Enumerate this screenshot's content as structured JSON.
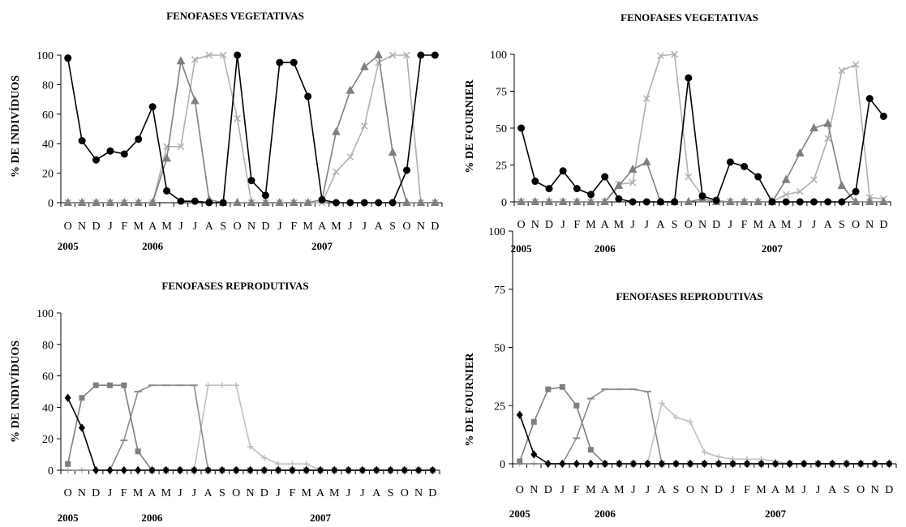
{
  "chart_data": [
    {
      "type": "line",
      "title": "FENOFASES VEGETATIVAS",
      "ylabel": "% DE INDIVÍDUOS",
      "ylim": [
        0,
        100
      ],
      "yticks": [
        0,
        20,
        40,
        60,
        80,
        100
      ],
      "categories": [
        "O",
        "N",
        "D",
        "J",
        "F",
        "M",
        "A",
        "M",
        "J",
        "J",
        "A",
        "S",
        "O",
        "N",
        "D",
        "J",
        "F",
        "M",
        "A",
        "M",
        "J",
        "J",
        "A",
        "S",
        "O",
        "N",
        "D"
      ],
      "year_labels": [
        {
          "label": "2005",
          "index": 0.5
        },
        {
          "label": "2006",
          "index": 6.5
        },
        {
          "label": "2007",
          "index": 18.5
        }
      ],
      "series": [
        {
          "marker": "circle",
          "color": "#000000",
          "values": [
            98,
            42,
            29,
            35,
            33,
            43,
            65,
            8,
            1,
            1,
            0,
            0,
            100,
            15,
            5,
            95,
            95,
            72,
            2,
            0,
            0,
            0,
            0,
            0,
            22,
            100,
            100
          ]
        },
        {
          "marker": "triangle",
          "color": "#7f7f7f",
          "values": [
            0,
            0,
            0,
            0,
            0,
            0,
            0,
            30,
            96,
            69,
            2,
            0,
            0,
            0,
            0,
            0,
            0,
            0,
            2,
            48,
            76,
            92,
            100,
            34,
            0,
            0,
            0
          ]
        },
        {
          "marker": "x",
          "color": "#b0b0b0",
          "values": [
            0,
            0,
            0,
            0,
            0,
            0,
            0,
            38,
            38,
            97,
            100,
            100,
            57,
            0,
            0,
            0,
            0,
            0,
            0,
            21,
            31,
            52,
            95,
            100,
            100,
            0,
            0
          ]
        }
      ]
    },
    {
      "type": "line",
      "title": "FENOFASES VEGETATIVAS",
      "ylabel": "% DE FOURNIER",
      "ylim": [
        0,
        100
      ],
      "yticks": [
        0,
        25,
        50,
        75,
        100
      ],
      "categories": [
        "O",
        "N",
        "D",
        "J",
        "F",
        "M",
        "A",
        "M",
        "J",
        "J",
        "A",
        "S",
        "O",
        "N",
        "D",
        "J",
        "F",
        "M",
        "A",
        "M",
        "J",
        "J",
        "A",
        "S",
        "O",
        "N",
        "D"
      ],
      "year_labels": [
        {
          "label": "2005",
          "index": 0.5
        },
        {
          "label": "2006",
          "index": 6.5
        },
        {
          "label": "2007",
          "index": 18.5
        }
      ],
      "series": [
        {
          "marker": "circle",
          "color": "#000000",
          "values": [
            50,
            14,
            9,
            21,
            9,
            5,
            17,
            2,
            0,
            0,
            0,
            0,
            84,
            4,
            1,
            27,
            24,
            17,
            0,
            0,
            0,
            0,
            0,
            0,
            7,
            70,
            58
          ]
        },
        {
          "marker": "triangle",
          "color": "#7f7f7f",
          "values": [
            0,
            0,
            0,
            0,
            0,
            0,
            0,
            11,
            22,
            27,
            0,
            0,
            0,
            2,
            0,
            0,
            0,
            0,
            0,
            15,
            33,
            50,
            53,
            11,
            0,
            0,
            0
          ]
        },
        {
          "marker": "x",
          "color": "#b0b0b0",
          "values": [
            0,
            0,
            0,
            0,
            0,
            0,
            0,
            12,
            13,
            70,
            99,
            100,
            17,
            4,
            1,
            0,
            0,
            0,
            0,
            5,
            7,
            15,
            43,
            89,
            93,
            3,
            2
          ]
        }
      ]
    },
    {
      "type": "line",
      "title": "FENOFASES REPRODUTIVAS",
      "ylabel": "% DE INDIVÍDUOS",
      "ylim": [
        0,
        100
      ],
      "yticks": [
        0,
        20,
        40,
        60,
        80,
        100
      ],
      "categories": [
        "O",
        "N",
        "D",
        "J",
        "F",
        "M",
        "A",
        "M",
        "J",
        "J",
        "A",
        "S",
        "O",
        "N",
        "D",
        "J",
        "F",
        "M",
        "A",
        "M",
        "J",
        "J",
        "A",
        "S",
        "O",
        "N",
        "D"
      ],
      "year_labels": [
        {
          "label": "2005",
          "index": 0.5
        },
        {
          "label": "2006",
          "index": 6.5
        },
        {
          "label": "2007",
          "index": 18.5
        }
      ],
      "series": [
        {
          "marker": "diamond",
          "color": "#000000",
          "values": [
            46,
            27,
            0,
            0,
            0,
            0,
            0,
            0,
            0,
            0,
            0,
            0,
            0,
            0,
            0,
            0,
            0,
            0,
            0,
            0,
            0,
            0,
            0,
            0,
            0,
            0,
            0
          ]
        },
        {
          "marker": "square",
          "color": "#7f7f7f",
          "values": [
            4,
            46,
            54,
            54,
            54,
            12,
            0,
            0,
            0,
            0,
            0,
            0,
            0,
            0,
            0,
            0,
            0,
            0,
            0,
            0,
            0,
            0,
            0,
            0,
            0,
            0,
            0
          ]
        },
        {
          "marker": "dash",
          "color": "#8c8c8c",
          "values": [
            0,
            0,
            0,
            0,
            19,
            50,
            54,
            54,
            54,
            54,
            0,
            0,
            0,
            0,
            0,
            0,
            0,
            0,
            0,
            0,
            0,
            0,
            0,
            0,
            0,
            0,
            0
          ]
        },
        {
          "marker": "plus",
          "color": "#c0c0c0",
          "values": [
            0,
            0,
            0,
            0,
            0,
            0,
            0,
            0,
            0,
            0,
            54,
            54,
            54,
            15,
            8,
            4,
            4,
            4,
            0,
            0,
            0,
            0,
            0,
            0,
            0,
            0,
            0
          ]
        }
      ]
    },
    {
      "type": "line",
      "title": "FENOFASES REPRODUTIVAS",
      "ylabel": "% DE FOURNIER",
      "ylim": [
        0,
        100
      ],
      "yticks": [
        0,
        25,
        50,
        75,
        100
      ],
      "categories": [
        "O",
        "N",
        "D",
        "J",
        "F",
        "M",
        "A",
        "M",
        "J",
        "J",
        "A",
        "S",
        "O",
        "N",
        "D",
        "J",
        "F",
        "M",
        "A",
        "M",
        "J",
        "J",
        "A",
        "S",
        "O",
        "N",
        "D"
      ],
      "year_labels": [
        {
          "label": "2005",
          "index": 0.5
        },
        {
          "label": "2006",
          "index": 6.5
        },
        {
          "label": "2007",
          "index": 18.5
        }
      ],
      "series": [
        {
          "marker": "diamond",
          "color": "#000000",
          "values": [
            21,
            4,
            0,
            0,
            0,
            0,
            0,
            0,
            0,
            0,
            0,
            0,
            0,
            0,
            0,
            0,
            0,
            0,
            0,
            0,
            0,
            0,
            0,
            0,
            0,
            0,
            0
          ]
        },
        {
          "marker": "square",
          "color": "#7f7f7f",
          "values": [
            1,
            18,
            32,
            33,
            25,
            6,
            0,
            0,
            0,
            0,
            0,
            0,
            0,
            0,
            0,
            0,
            0,
            0,
            0,
            0,
            0,
            0,
            0,
            0,
            0,
            0,
            0
          ]
        },
        {
          "marker": "dash",
          "color": "#8c8c8c",
          "values": [
            0,
            0,
            0,
            0,
            11,
            28,
            32,
            32,
            32,
            31,
            0,
            0,
            0,
            0,
            0,
            0,
            0,
            0,
            0,
            0,
            0,
            0,
            0,
            0,
            0,
            0,
            0
          ]
        },
        {
          "marker": "plus",
          "color": "#c0c0c0",
          "values": [
            0,
            0,
            0,
            0,
            0,
            0,
            0,
            0,
            0,
            0,
            26,
            20,
            18,
            5,
            3,
            2,
            2,
            2,
            1,
            0,
            0,
            0,
            0,
            0,
            0,
            0,
            0
          ]
        }
      ]
    }
  ]
}
